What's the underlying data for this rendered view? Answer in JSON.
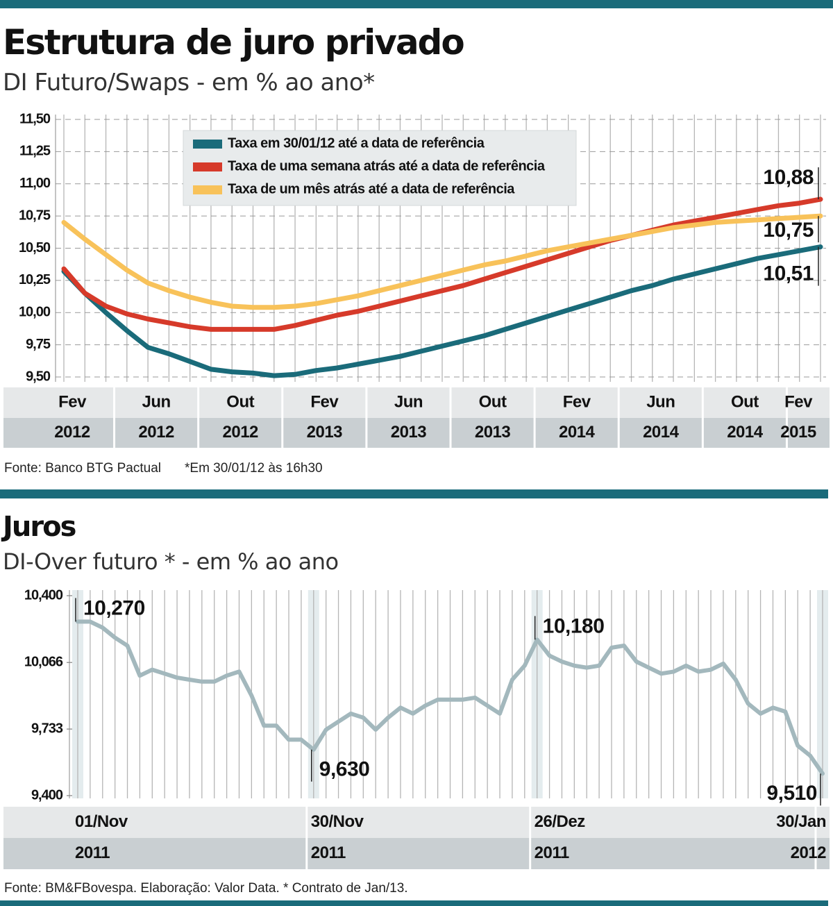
{
  "chart_data": [
    {
      "type": "line",
      "title": "Estrutura de juro privado",
      "subtitle": "DI Futuro/Swaps - em % ao ano*",
      "source": "Fonte: Banco BTG Pactual",
      "note": "*Em 30/01/12 às 16h30",
      "categories": [
        [
          "Fev",
          "2012"
        ],
        null,
        null,
        null,
        [
          "Jun",
          "2012"
        ],
        null,
        null,
        null,
        [
          "Out",
          "2012"
        ],
        null,
        null,
        null,
        [
          "Fev",
          "2013"
        ],
        null,
        null,
        null,
        [
          "Jun",
          "2013"
        ],
        null,
        null,
        null,
        [
          "Out",
          "2013"
        ],
        null,
        null,
        null,
        [
          "Fev",
          "2014"
        ],
        null,
        null,
        null,
        [
          "Jun",
          "2014"
        ],
        null,
        null,
        null,
        [
          "Out",
          "2014"
        ],
        null,
        null,
        null,
        [
          "Fev",
          "2015"
        ]
      ],
      "series": [
        {
          "name": "Taxa em 30/01/12 até a data de referência",
          "color": "#1a6b7a",
          "values": [
            10.32,
            10.15,
            10.0,
            9.86,
            9.73,
            9.68,
            9.62,
            9.56,
            9.54,
            9.53,
            9.51,
            9.52,
            9.55,
            9.57,
            9.6,
            9.63,
            9.66,
            9.7,
            9.74,
            9.78,
            9.82,
            9.87,
            9.92,
            9.97,
            10.02,
            10.07,
            10.12,
            10.17,
            10.21,
            10.26,
            10.3,
            10.34,
            10.38,
            10.42,
            10.45,
            10.48,
            10.51
          ],
          "value_labels": [
            null,
            null,
            null,
            null,
            null,
            null,
            null,
            null,
            null,
            null,
            null,
            null,
            null,
            null,
            null,
            null,
            null,
            null,
            null,
            null,
            null,
            null,
            null,
            null,
            null,
            null,
            null,
            null,
            null,
            null,
            null,
            null,
            null,
            null,
            null,
            null,
            "10,51"
          ]
        },
        {
          "name": "Taxa de uma semana atrás até a data de referência",
          "color": "#d63a2a",
          "values": [
            10.34,
            10.15,
            10.05,
            9.99,
            9.95,
            9.92,
            9.89,
            9.87,
            9.87,
            9.87,
            9.87,
            9.9,
            9.94,
            9.98,
            10.01,
            10.05,
            10.09,
            10.13,
            10.17,
            10.21,
            10.26,
            10.31,
            10.36,
            10.41,
            10.46,
            10.51,
            10.56,
            10.6,
            10.64,
            10.68,
            10.71,
            10.74,
            10.77,
            10.8,
            10.83,
            10.85,
            10.88
          ],
          "value_labels": [
            null,
            null,
            null,
            null,
            null,
            null,
            null,
            null,
            null,
            null,
            null,
            null,
            null,
            null,
            null,
            null,
            null,
            null,
            null,
            null,
            null,
            null,
            null,
            null,
            null,
            null,
            null,
            null,
            null,
            null,
            null,
            null,
            null,
            null,
            null,
            null,
            "10,88"
          ]
        },
        {
          "name": "Taxa de um mês atrás até a data de referência",
          "color": "#f8c25a",
          "values": [
            10.7,
            10.57,
            10.45,
            10.33,
            10.23,
            10.17,
            10.12,
            10.08,
            10.05,
            10.04,
            10.04,
            10.05,
            10.07,
            10.1,
            10.13,
            10.17,
            10.21,
            10.25,
            10.29,
            10.33,
            10.37,
            10.4,
            10.44,
            10.48,
            10.51,
            10.54,
            10.57,
            10.6,
            10.63,
            10.66,
            10.68,
            10.7,
            10.71,
            10.72,
            10.73,
            10.74,
            10.75
          ],
          "value_labels": [
            null,
            null,
            null,
            null,
            null,
            null,
            null,
            null,
            null,
            null,
            null,
            null,
            null,
            null,
            null,
            null,
            null,
            null,
            null,
            null,
            null,
            null,
            null,
            null,
            null,
            null,
            null,
            null,
            null,
            null,
            null,
            null,
            null,
            null,
            null,
            null,
            "10,75"
          ]
        }
      ],
      "ylim": [
        9.5,
        11.5
      ],
      "yticks": [
        {
          "value": 9.5,
          "label": "9,50"
        },
        {
          "value": 9.75,
          "label": "9,75"
        },
        {
          "value": 10,
          "label": "10,00"
        },
        {
          "value": 10.25,
          "label": "10,25"
        },
        {
          "value": 10.5,
          "label": "10,50"
        },
        {
          "value": 10.75,
          "label": "10,75"
        },
        {
          "value": 11,
          "label": "11,00"
        },
        {
          "value": 11.25,
          "label": "11,25"
        },
        {
          "value": 11.5,
          "label": "11,50"
        }
      ],
      "grid": true,
      "legend": "top"
    },
    {
      "type": "line",
      "title": "Juros",
      "subtitle": "DI-Over futuro * - em % ao ano",
      "source": "Fonte: BM&FBovespa. Elaboração: Valor Data. * Contrato de Jan/13.",
      "categories": [
        [
          "01/Nov",
          "2011"
        ],
        null,
        null,
        null,
        null,
        null,
        null,
        null,
        null,
        null,
        null,
        null,
        null,
        null,
        null,
        null,
        null,
        null,
        null,
        [
          "30/Nov",
          "2011"
        ],
        null,
        null,
        null,
        null,
        null,
        null,
        null,
        null,
        null,
        null,
        null,
        null,
        null,
        null,
        null,
        null,
        null,
        [
          "26/Dez",
          "2011"
        ],
        null,
        null,
        null,
        null,
        null,
        null,
        null,
        null,
        null,
        null,
        null,
        null,
        null,
        null,
        null,
        null,
        null,
        null,
        null,
        null,
        null,
        null,
        [
          "30/Jan",
          "2012"
        ]
      ],
      "series": [
        {
          "color": "#a3b8bd",
          "values": [
            10.27,
            10.27,
            10.24,
            10.19,
            10.15,
            10.0,
            10.03,
            10.01,
            9.99,
            9.98,
            9.97,
            9.97,
            10.0,
            10.02,
            9.9,
            9.75,
            9.75,
            9.68,
            9.68,
            9.63,
            9.73,
            9.77,
            9.81,
            9.79,
            9.73,
            9.79,
            9.84,
            9.81,
            9.85,
            9.88,
            9.88,
            9.88,
            9.89,
            9.85,
            9.81,
            9.98,
            10.05,
            10.18,
            10.1,
            10.07,
            10.05,
            10.04,
            10.05,
            10.14,
            10.15,
            10.07,
            10.04,
            10.01,
            10.02,
            10.05,
            10.02,
            10.03,
            10.06,
            9.98,
            9.86,
            9.81,
            9.84,
            9.82,
            9.65,
            9.6,
            9.51
          ],
          "value_labels": [
            "10,270",
            null,
            null,
            null,
            null,
            null,
            null,
            null,
            null,
            null,
            null,
            null,
            null,
            null,
            null,
            null,
            null,
            null,
            null,
            "9,630",
            null,
            null,
            null,
            null,
            null,
            null,
            null,
            null,
            null,
            null,
            null,
            null,
            null,
            null,
            null,
            null,
            null,
            "10,180",
            null,
            null,
            null,
            null,
            null,
            null,
            null,
            null,
            null,
            null,
            null,
            null,
            null,
            null,
            null,
            null,
            null,
            null,
            null,
            null,
            null,
            null,
            "9,510"
          ]
        }
      ],
      "ylim": [
        9.4,
        10.4
      ],
      "yticks": [
        {
          "value": 9.4,
          "label": "9,400"
        },
        {
          "value": 9.733,
          "label": "9,733"
        },
        {
          "value": 10.066,
          "label": "10,066"
        },
        {
          "value": 10.4,
          "label": "10,400"
        }
      ],
      "grid": true
    }
  ]
}
